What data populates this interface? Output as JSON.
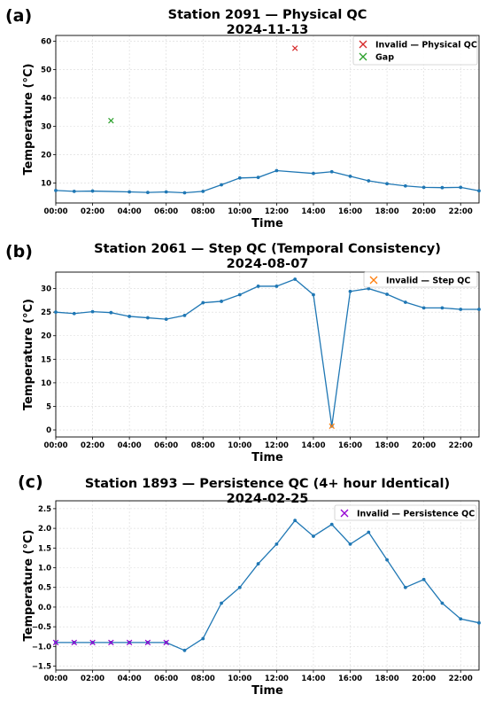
{
  "chart_data": [
    {
      "panel_label": "(a)",
      "type": "line",
      "title": "Station 2091 — Physical QC",
      "subtitle": "2024-11-13",
      "xlabel": "Time",
      "ylabel": "Temperature (°C)",
      "xlim": [
        0,
        23
      ],
      "ylim": [
        3,
        62
      ],
      "xticks": [
        0,
        2,
        4,
        6,
        8,
        10,
        12,
        14,
        16,
        18,
        20,
        22
      ],
      "xtick_labels": [
        "00:00",
        "02:00",
        "04:00",
        "06:00",
        "08:00",
        "10:00",
        "12:00",
        "14:00",
        "16:00",
        "18:00",
        "20:00",
        "22:00"
      ],
      "yticks": [
        10,
        20,
        30,
        40,
        50,
        60
      ],
      "ytick_labels": [
        "10",
        "20",
        "30",
        "40",
        "50",
        "60"
      ],
      "grid": true,
      "legend_position": "top-right",
      "line_color": "#1f77b4",
      "series": [
        {
          "x": [
            0,
            1,
            2,
            4,
            5,
            6,
            7,
            8,
            9,
            10,
            11,
            12,
            14,
            15,
            16,
            17,
            18,
            19,
            20,
            21,
            22,
            23
          ],
          "values": [
            7.4,
            7.1,
            7.2,
            6.9,
            6.7,
            6.9,
            6.6,
            7.1,
            9.4,
            11.8,
            12.0,
            14.4,
            13.4,
            14.0,
            12.4,
            10.8,
            9.8,
            9.0,
            8.5,
            8.4,
            8.5,
            7.3
          ]
        }
      ],
      "markers": [
        {
          "name": "Invalid — Physical QC",
          "color": "#d62728",
          "points": [
            {
              "x": 13,
              "y": 57.5
            }
          ]
        },
        {
          "name": "Gap",
          "color": "#2ca02c",
          "points": [
            {
              "x": 3,
              "y": 32
            }
          ]
        }
      ]
    },
    {
      "panel_label": "(b)",
      "type": "line",
      "title": "Station 2061 — Step QC (Temporal Consistency)",
      "subtitle": "2024-08-07",
      "xlabel": "Time",
      "ylabel": "Temperature (°C)",
      "xlim": [
        0,
        23
      ],
      "ylim": [
        -1.5,
        33.5
      ],
      "xticks": [
        0,
        2,
        4,
        6,
        8,
        10,
        12,
        14,
        16,
        18,
        20,
        22
      ],
      "xtick_labels": [
        "00:00",
        "02:00",
        "04:00",
        "06:00",
        "08:00",
        "10:00",
        "12:00",
        "14:00",
        "16:00",
        "18:00",
        "20:00",
        "22:00"
      ],
      "yticks": [
        0,
        5,
        10,
        15,
        20,
        25,
        30
      ],
      "ytick_labels": [
        "0",
        "5",
        "10",
        "15",
        "20",
        "25",
        "30"
      ],
      "grid": true,
      "legend_position": "top-right",
      "line_color": "#1f77b4",
      "series": [
        {
          "x": [
            0,
            1,
            2,
            3,
            4,
            5,
            6,
            7,
            8,
            9,
            10,
            11,
            12,
            13,
            14,
            15,
            16,
            17,
            18,
            19,
            20,
            21,
            22,
            23
          ],
          "values": [
            25.0,
            24.7,
            25.1,
            24.9,
            24.1,
            23.8,
            23.5,
            24.3,
            27.0,
            27.3,
            28.7,
            30.5,
            30.5,
            32.0,
            28.7,
            0.8,
            29.4,
            30.0,
            28.8,
            27.1,
            25.9,
            25.9,
            25.6,
            25.6
          ]
        }
      ],
      "markers": [
        {
          "name": "Invalid — Step QC",
          "color": "#ff7f0e",
          "points": [
            {
              "x": 15,
              "y": 0.8
            }
          ]
        }
      ]
    },
    {
      "panel_label": "(c)",
      "type": "line",
      "title": "Station 1893 — Persistence QC (4+ hour Identical)",
      "subtitle": "2024-02-25",
      "xlabel": "Time",
      "ylabel": "Temperature (°C)",
      "xlim": [
        0,
        23
      ],
      "ylim": [
        -1.6,
        2.7
      ],
      "xticks": [
        0,
        2,
        4,
        6,
        8,
        10,
        12,
        14,
        16,
        18,
        20,
        22
      ],
      "xtick_labels": [
        "00:00",
        "02:00",
        "04:00",
        "06:00",
        "08:00",
        "10:00",
        "12:00",
        "14:00",
        "16:00",
        "18:00",
        "20:00",
        "22:00"
      ],
      "yticks": [
        -1.5,
        -1.0,
        -0.5,
        0.0,
        0.5,
        1.0,
        1.5,
        2.0,
        2.5
      ],
      "ytick_labels": [
        "−1.5",
        "−1.0",
        "−0.5",
        "0.0",
        "0.5",
        "1.0",
        "1.5",
        "2.0",
        "2.5"
      ],
      "grid": true,
      "legend_position": "top-right",
      "line_color": "#1f77b4",
      "series": [
        {
          "x": [
            0,
            1,
            2,
            3,
            4,
            5,
            6,
            7,
            8,
            9,
            10,
            11,
            12,
            13,
            14,
            15,
            16,
            17,
            18,
            19,
            20,
            21,
            22,
            23
          ],
          "values": [
            -0.9,
            -0.9,
            -0.9,
            -0.9,
            -0.9,
            -0.9,
            -0.9,
            -1.1,
            -0.8,
            0.1,
            0.5,
            1.1,
            1.6,
            2.2,
            1.8,
            2.1,
            1.6,
            1.9,
            1.2,
            0.5,
            0.7,
            0.1,
            -0.3,
            -0.4
          ]
        }
      ],
      "markers": [
        {
          "name": "Invalid — Persistence QC",
          "color": "#9400d3",
          "points": [
            {
              "x": 0,
              "y": -0.9
            },
            {
              "x": 1,
              "y": -0.9
            },
            {
              "x": 2,
              "y": -0.9
            },
            {
              "x": 3,
              "y": -0.9
            },
            {
              "x": 4,
              "y": -0.9
            },
            {
              "x": 5,
              "y": -0.9
            },
            {
              "x": 6,
              "y": -0.9
            }
          ]
        }
      ]
    }
  ]
}
